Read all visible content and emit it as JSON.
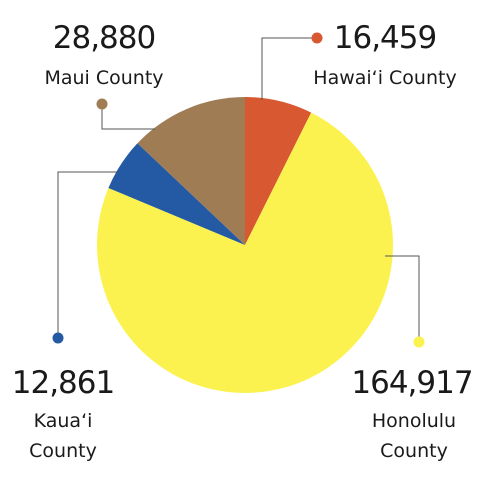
{
  "chart_data": {
    "type": "pie",
    "title": "",
    "start_angle_deg": 0,
    "direction": "clockwise",
    "slices": [
      {
        "label_lines": [
          "Hawai‘i County"
        ],
        "value": 16459,
        "value_label": "16,459",
        "color": "#d85832"
      },
      {
        "label_lines": [
          "Honolulu",
          "County"
        ],
        "value": 164917,
        "value_label": "164,917",
        "color": "#fcf24f"
      },
      {
        "label_lines": [
          "Kaua‘i",
          "County"
        ],
        "value": 12861,
        "value_label": "12,861",
        "color": "#2459a3"
      },
      {
        "label_lines": [
          "Maui County"
        ],
        "value": 28880,
        "value_label": "28,880",
        "color": "#a07c55"
      }
    ]
  }
}
